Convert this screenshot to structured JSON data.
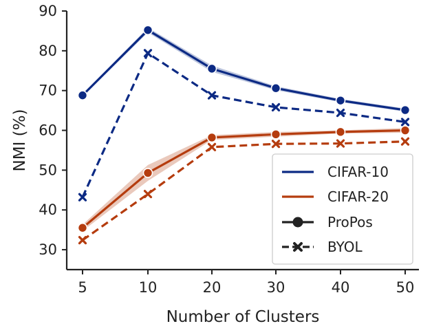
{
  "chart_data": {
    "type": "line",
    "title": "",
    "xlabel": "Number of Clusters",
    "ylabel": "NMI (%)",
    "x": [
      5,
      10,
      20,
      30,
      40,
      50
    ],
    "xticks": [
      "5",
      "10",
      "20",
      "30",
      "40",
      "50"
    ],
    "yticks": [
      "30",
      "40",
      "50",
      "60",
      "70",
      "80",
      "90"
    ],
    "ylim": [
      25,
      90
    ],
    "grid": false,
    "legend_position": "lower-right",
    "datasets": [
      {
        "name": "CIFAR-10",
        "color": "#0c2a84"
      },
      {
        "name": "CIFAR-20",
        "color": "#b53c0e"
      }
    ],
    "methods": [
      {
        "name": "ProPos",
        "line_style": "solid",
        "marker": "circle"
      },
      {
        "name": "BYOL",
        "line_style": "dashed",
        "marker": "x"
      }
    ],
    "series": [
      {
        "dataset": "CIFAR-10",
        "method": "ProPos",
        "values": [
          68.8,
          85.2,
          75.5,
          70.6,
          67.5,
          65.1
        ],
        "band": [
          0.3,
          0.6,
          0.8,
          0.5,
          0.4,
          0.4
        ]
      },
      {
        "dataset": "CIFAR-10",
        "method": "BYOL",
        "values": [
          43.2,
          79.4,
          68.8,
          65.8,
          64.4,
          62.1
        ]
      },
      {
        "dataset": "CIFAR-20",
        "method": "ProPos",
        "values": [
          35.5,
          49.3,
          58.2,
          59.0,
          59.6,
          60.0
        ],
        "band": [
          0.8,
          2.0,
          0.6,
          0.6,
          0.4,
          0.6
        ]
      },
      {
        "dataset": "CIFAR-20",
        "method": "BYOL",
        "values": [
          32.4,
          44.0,
          55.8,
          56.6,
          56.7,
          57.2
        ]
      }
    ]
  }
}
